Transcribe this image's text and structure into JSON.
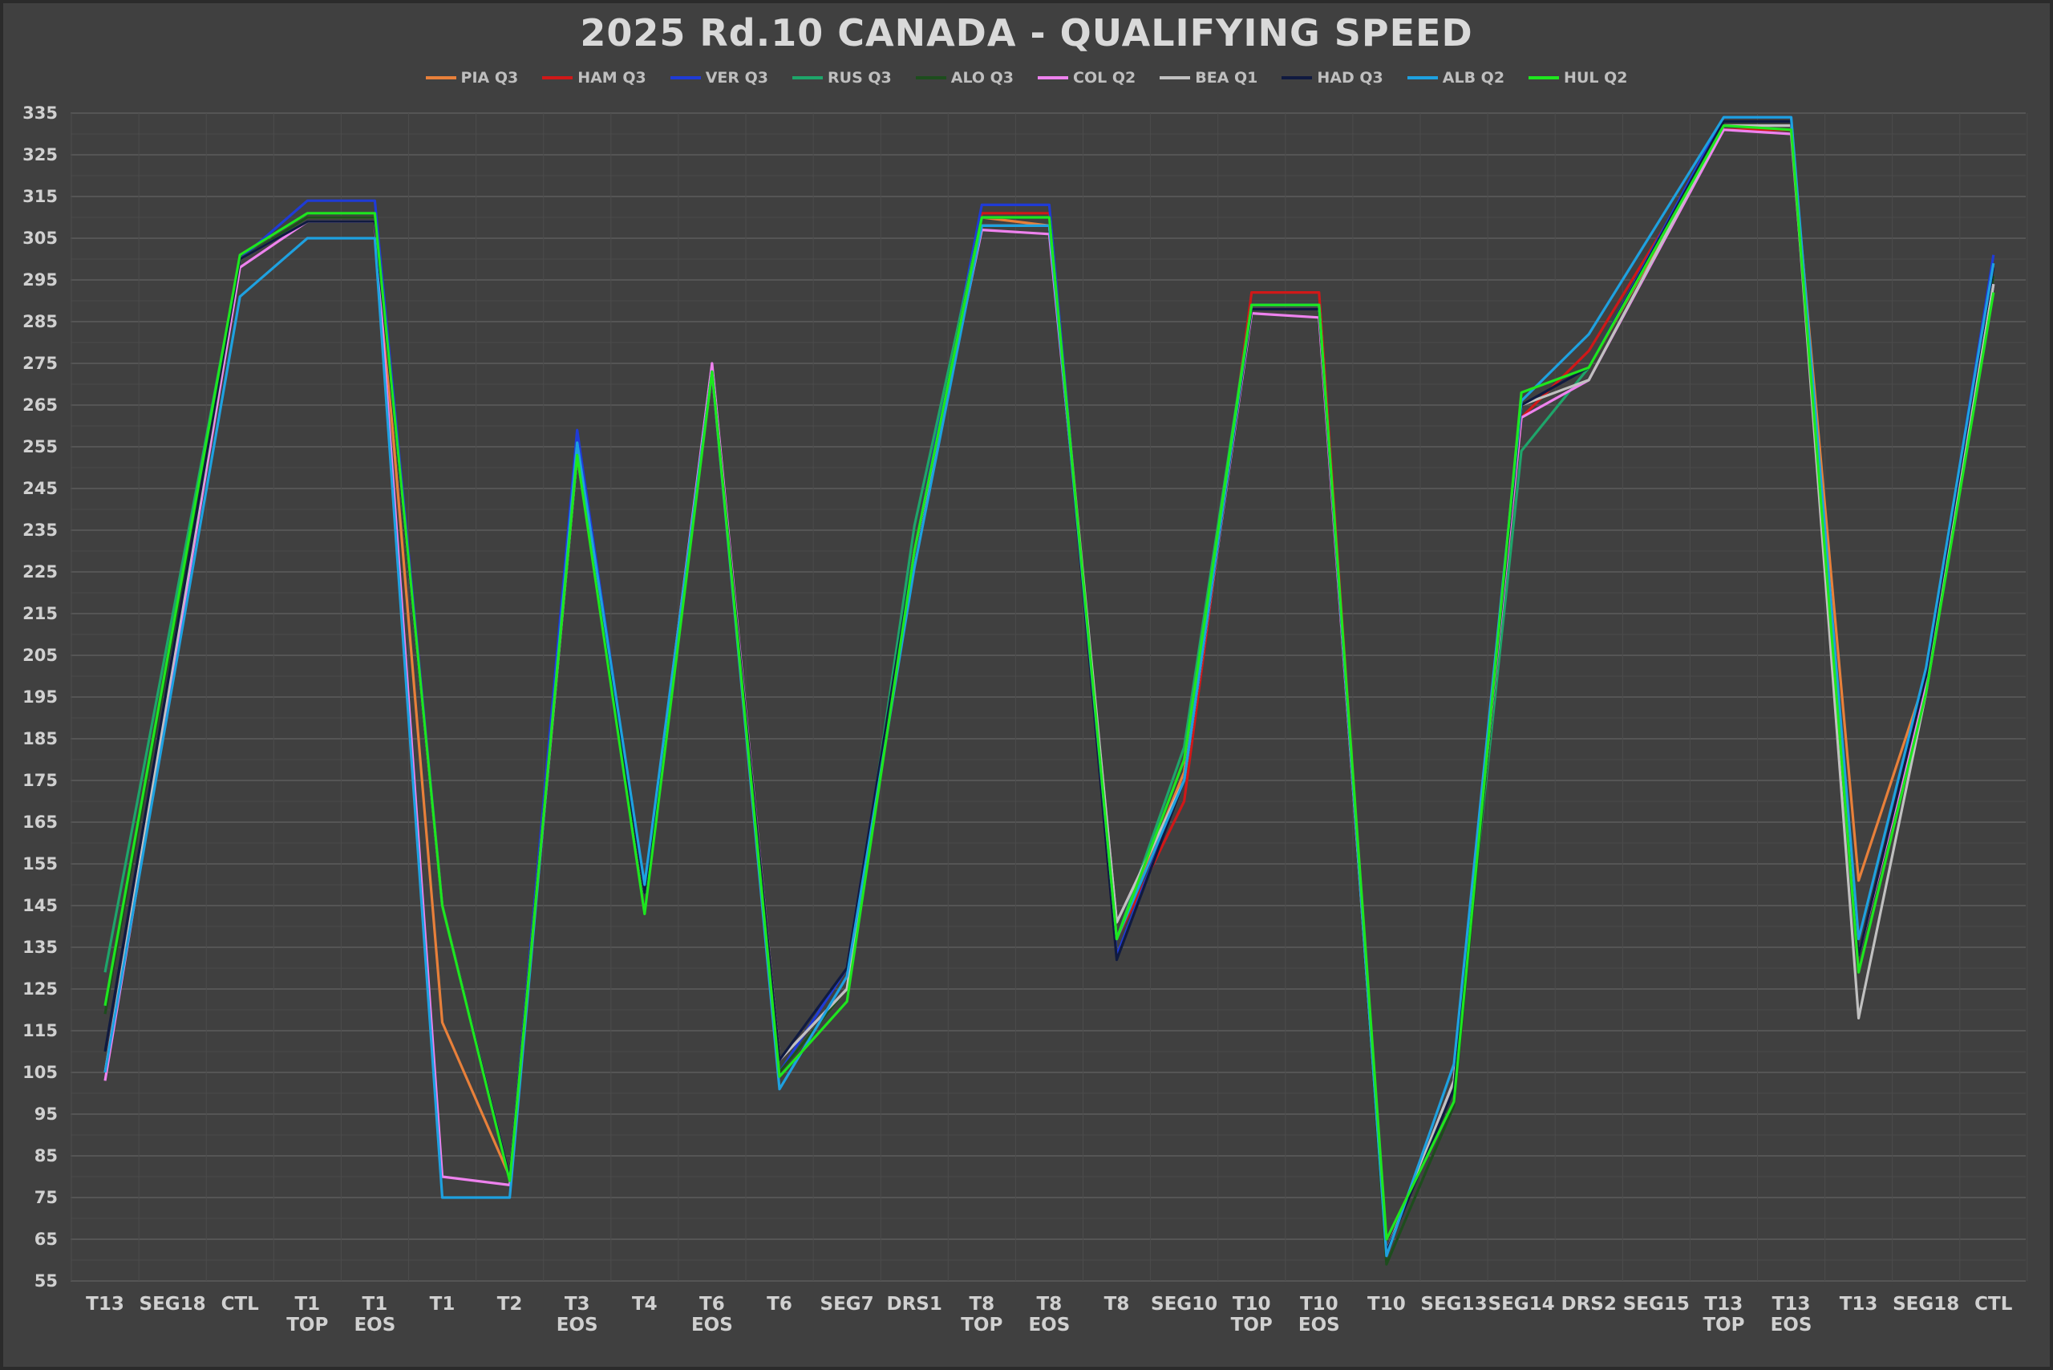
{
  "chart_data": {
    "type": "line",
    "title": "2025 Rd.10 CANADA - QUALIFYING SPEED",
    "xlabel": "",
    "ylabel": "",
    "ylim": [
      55,
      335
    ],
    "yticks": [
      55,
      65,
      75,
      85,
      95,
      105,
      115,
      125,
      135,
      145,
      155,
      165,
      175,
      185,
      195,
      205,
      215,
      225,
      235,
      245,
      255,
      265,
      275,
      285,
      295,
      305,
      315,
      325,
      335
    ],
    "grid": true,
    "legend_position": "top",
    "categories": [
      [
        "T13"
      ],
      [
        "SEG18"
      ],
      [
        "CTL"
      ],
      [
        "T1",
        "TOP"
      ],
      [
        "T1",
        "EOS"
      ],
      [
        "T1"
      ],
      [
        "T2"
      ],
      [
        "T3",
        "EOS"
      ],
      [
        "T4"
      ],
      [
        "T6",
        "EOS"
      ],
      [
        "T6"
      ],
      [
        "SEG7"
      ],
      [
        "DRS1"
      ],
      [
        "T8",
        "TOP"
      ],
      [
        "T8",
        "EOS"
      ],
      [
        "T8"
      ],
      [
        "SEG10"
      ],
      [
        "T10",
        "TOP"
      ],
      [
        "T10",
        "EOS"
      ],
      [
        "T10"
      ],
      [
        "SEG13"
      ],
      [
        "SEG14"
      ],
      [
        "DRS2"
      ],
      [
        "SEG15"
      ],
      [
        "T13",
        "TOP"
      ],
      [
        "T13",
        "EOS"
      ],
      [
        "T13"
      ],
      [
        "SEG18"
      ],
      [
        "CTL"
      ]
    ],
    "series": [
      {
        "name": "PIA Q3",
        "color": "#e8803a",
        "values": [
          105,
          null,
          300,
          310,
          310,
          117,
          80,
          253,
          148,
          273,
          105,
          125,
          230,
          310,
          308,
          137,
          177,
          288,
          288,
          62,
          103,
          265,
          274,
          null,
          331,
          331,
          151,
          200,
          296
        ]
      },
      {
        "name": "HAM  Q3",
        "color": "#d01818",
        "values": [
          105,
          null,
          300,
          310,
          310,
          145,
          80,
          253,
          148,
          273,
          105,
          125,
          230,
          311,
          311,
          137,
          170,
          292,
          292,
          62,
          103,
          262,
          278,
          null,
          331,
          331,
          133,
          200,
          296
        ]
      },
      {
        "name": "VER Q3",
        "color": "#1f3bd6",
        "values": [
          105,
          null,
          300,
          314,
          314,
          145,
          80,
          259,
          148,
          273,
          105,
          130,
          230,
          313,
          313,
          133,
          175,
          289,
          289,
          62,
          103,
          265,
          274,
          null,
          334,
          334,
          133,
          200,
          301
        ]
      },
      {
        "name": "RUS Q3",
        "color": "#1ea56a",
        "values": [
          129,
          null,
          300,
          310,
          310,
          145,
          80,
          253,
          148,
          273,
          105,
          125,
          236,
          310,
          310,
          137,
          183,
          289,
          289,
          62,
          103,
          254,
          274,
          null,
          332,
          332,
          133,
          200,
          296
        ]
      },
      {
        "name": "ALO Q3",
        "color": "#1d4d1d",
        "values": [
          119,
          null,
          300,
          310,
          310,
          145,
          80,
          253,
          148,
          273,
          105,
          125,
          230,
          310,
          310,
          137,
          175,
          288,
          288,
          59,
          97,
          265,
          274,
          null,
          332,
          332,
          133,
          200,
          296
        ]
      },
      {
        "name": "COL Q2",
        "color": "#ee82ee",
        "values": [
          103,
          null,
          298,
          309,
          309,
          80,
          78,
          253,
          148,
          275,
          108,
          125,
          230,
          307,
          306,
          141,
          175,
          287,
          286,
          62,
          103,
          262,
          271,
          null,
          331,
          330,
          133,
          198,
          294
        ]
      },
      {
        "name": "BEA Q1",
        "color": "#c0c0c0",
        "values": [
          105,
          null,
          300,
          309,
          309,
          145,
          80,
          253,
          148,
          273,
          108,
          125,
          230,
          308,
          308,
          141,
          175,
          288,
          288,
          62,
          103,
          265,
          271,
          null,
          332,
          332,
          118,
          196,
          294
        ]
      },
      {
        "name": "HAD Q3",
        "color": "#101a40",
        "values": [
          110,
          null,
          300,
          309,
          309,
          145,
          80,
          253,
          148,
          273,
          108,
          130,
          230,
          310,
          310,
          132,
          175,
          288,
          288,
          62,
          101,
          265,
          274,
          null,
          333,
          333,
          133,
          200,
          298
        ]
      },
      {
        "name": "ALB Q2",
        "color": "#1ea1e0",
        "values": [
          105,
          null,
          291,
          305,
          305,
          75,
          75,
          256,
          150,
          273,
          101,
          128,
          226,
          308,
          308,
          137,
          175,
          289,
          289,
          61,
          107,
          266,
          282,
          null,
          334,
          334,
          137,
          202,
          299
        ]
      },
      {
        "name": "HUL Q2",
        "color": "#1ee61e",
        "values": [
          121,
          null,
          301,
          311,
          311,
          145,
          79,
          253,
          143,
          273,
          104,
          122,
          230,
          310,
          310,
          137,
          180,
          289,
          289,
          65,
          98,
          268,
          274,
          null,
          332,
          331,
          129,
          196,
          292
        ]
      }
    ]
  }
}
